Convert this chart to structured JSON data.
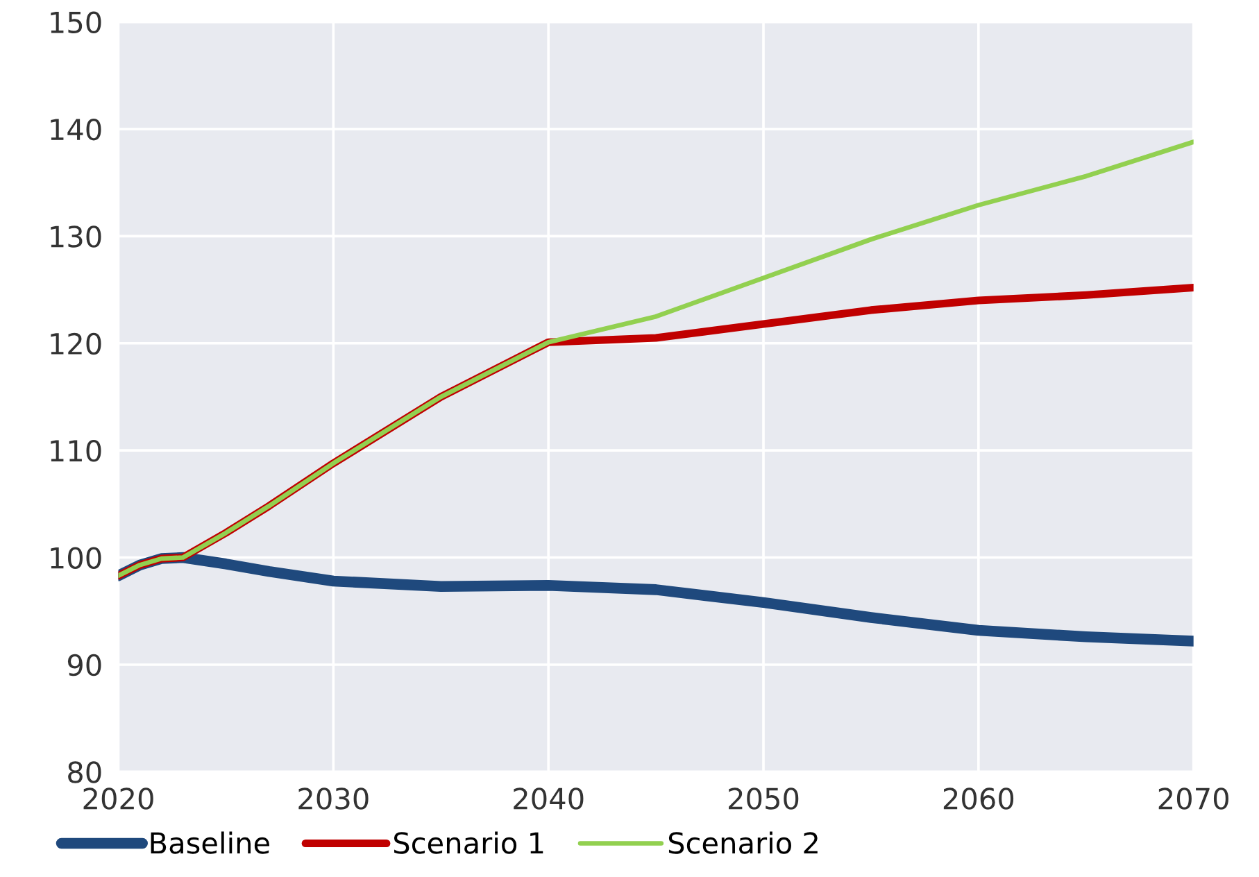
{
  "chart_data": {
    "type": "line",
    "x": [
      2020,
      2021,
      2022,
      2023,
      2025,
      2027,
      2030,
      2035,
      2040,
      2045,
      2050,
      2055,
      2060,
      2065,
      2070
    ],
    "series": [
      {
        "name": "Baseline",
        "color": "#1f497d",
        "values": [
          98.3,
          99.3,
          99.9,
          100.0,
          99.4,
          98.7,
          97.8,
          97.3,
          97.4,
          97.0,
          95.8,
          94.4,
          93.2,
          92.6,
          92.2
        ]
      },
      {
        "name": "Scenario 1",
        "color": "#c00000",
        "values": [
          98.3,
          99.3,
          99.9,
          100.0,
          102.3,
          104.8,
          108.8,
          115.0,
          120.1,
          120.5,
          121.8,
          123.1,
          124.0,
          124.5,
          125.2
        ]
      },
      {
        "name": "Scenario 2",
        "color": "#92d050",
        "values": [
          98.3,
          99.3,
          99.9,
          100.0,
          102.3,
          104.8,
          108.8,
          115.0,
          120.1,
          122.5,
          126.1,
          129.7,
          132.9,
          135.6,
          138.8
        ]
      }
    ],
    "xlim": [
      2020,
      2070
    ],
    "xticks": [
      2020,
      2030,
      2040,
      2050,
      2060,
      2070
    ],
    "ylim": [
      80,
      150
    ],
    "yticks": [
      80,
      90,
      100,
      110,
      120,
      130,
      140,
      150
    ],
    "grid": true,
    "legend": "bottom",
    "marker": "none",
    "line_style": "solid"
  }
}
